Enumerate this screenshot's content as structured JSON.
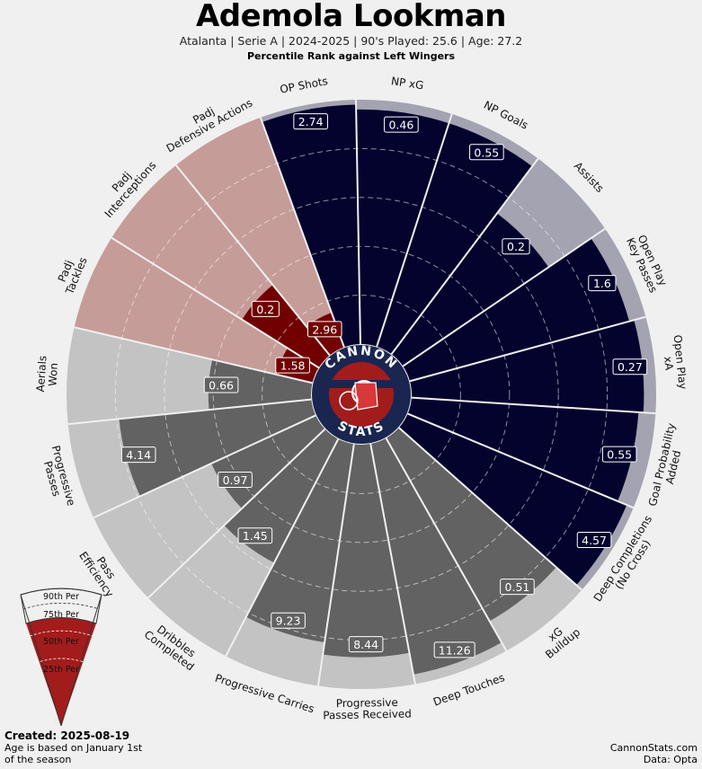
{
  "header": {
    "title": "Ademola Lookman",
    "subtitle": "Atalanta  | Serie A | 2024-2025 | 90's Played: 25.6 | Age: 27.2",
    "rank_caption": "Percentile Rank against Left Wingers"
  },
  "footer": {
    "created": "Created: 2025-08-19",
    "age_note": "Age is based on January 1st of the season",
    "credit_site": "CannonStats.com",
    "credit_data": "Data: Opta"
  },
  "logo": {
    "top_text": "CANNON",
    "bottom_text": "STATS"
  },
  "legend": {
    "labels": [
      "90th Per",
      "75th Per",
      "50th Per",
      "25th Per"
    ]
  },
  "colors": {
    "attacking": "#03032e",
    "attacking_bg": "#a3a3b1",
    "possession": "#626262",
    "possession_bg": "#c3c3c3",
    "defending": "#720000",
    "defending_bg": "#c69c98",
    "logo_red": "#a31c1c"
  },
  "chart_data": {
    "type": "radar",
    "title": "Ademola Lookman",
    "rmax": 100,
    "rings": [
      20,
      40,
      60,
      80
    ],
    "metrics": [
      {
        "label": "OP Shots",
        "value": "2.74",
        "percentile": 98,
        "group": "attacking"
      },
      {
        "label": "NP xG",
        "value": "0.46",
        "percentile": 96,
        "group": "attacking"
      },
      {
        "label": "NP Goals",
        "value": "0.55",
        "percentile": 96,
        "group": "attacking"
      },
      {
        "label": "Assists",
        "value": "0.2",
        "percentile": 72,
        "group": "attacking"
      },
      {
        "label": "Open Play\nKey Passes",
        "value": "1.6",
        "percentile": 93,
        "group": "attacking"
      },
      {
        "label": "Open Play\nxA",
        "value": "0.27",
        "percentile": 95,
        "group": "attacking"
      },
      {
        "label": "Goal Probability\nAdded",
        "value": "0.55",
        "percentile": 93,
        "group": "attacking"
      },
      {
        "label": "Deep Completions\n(No Cross)",
        "value": "4.57",
        "percentile": 97,
        "group": "attacking"
      },
      {
        "label": "xG\nBuildup",
        "value": "0.51",
        "percentile": 86,
        "group": "possession"
      },
      {
        "label": "Deep Touches",
        "value": "11.26",
        "percentile": 96,
        "group": "possession"
      },
      {
        "label": "Progressive\nPasses Received",
        "value": "8.44",
        "percentile": 87,
        "group": "possession"
      },
      {
        "label": "Progressive Carries",
        "value": "9.23",
        "percentile": 82,
        "group": "possession"
      },
      {
        "label": "Dribbles\nCompleted",
        "value": "1.45",
        "percentile": 57,
        "group": "possession"
      },
      {
        "label": "Pass\nEfficiency",
        "value": "0.97",
        "percentile": 47,
        "group": "possession"
      },
      {
        "label": "Progressive\nPasses",
        "value": "4.14",
        "percentile": 79,
        "group": "possession"
      },
      {
        "label": "Aerials\nWon",
        "value": "0.66",
        "percentile": 42,
        "group": "possession"
      },
      {
        "label": "Padj\nTackles",
        "value": "1.58",
        "percentile": 15,
        "group": "defending"
      },
      {
        "label": "Padj\nInterceptions",
        "value": "0.2",
        "percentile": 37,
        "group": "defending"
      },
      {
        "label": "Padj\nDefensive Actions",
        "value": "2.96",
        "percentile": 15,
        "group": "defending"
      }
    ]
  }
}
